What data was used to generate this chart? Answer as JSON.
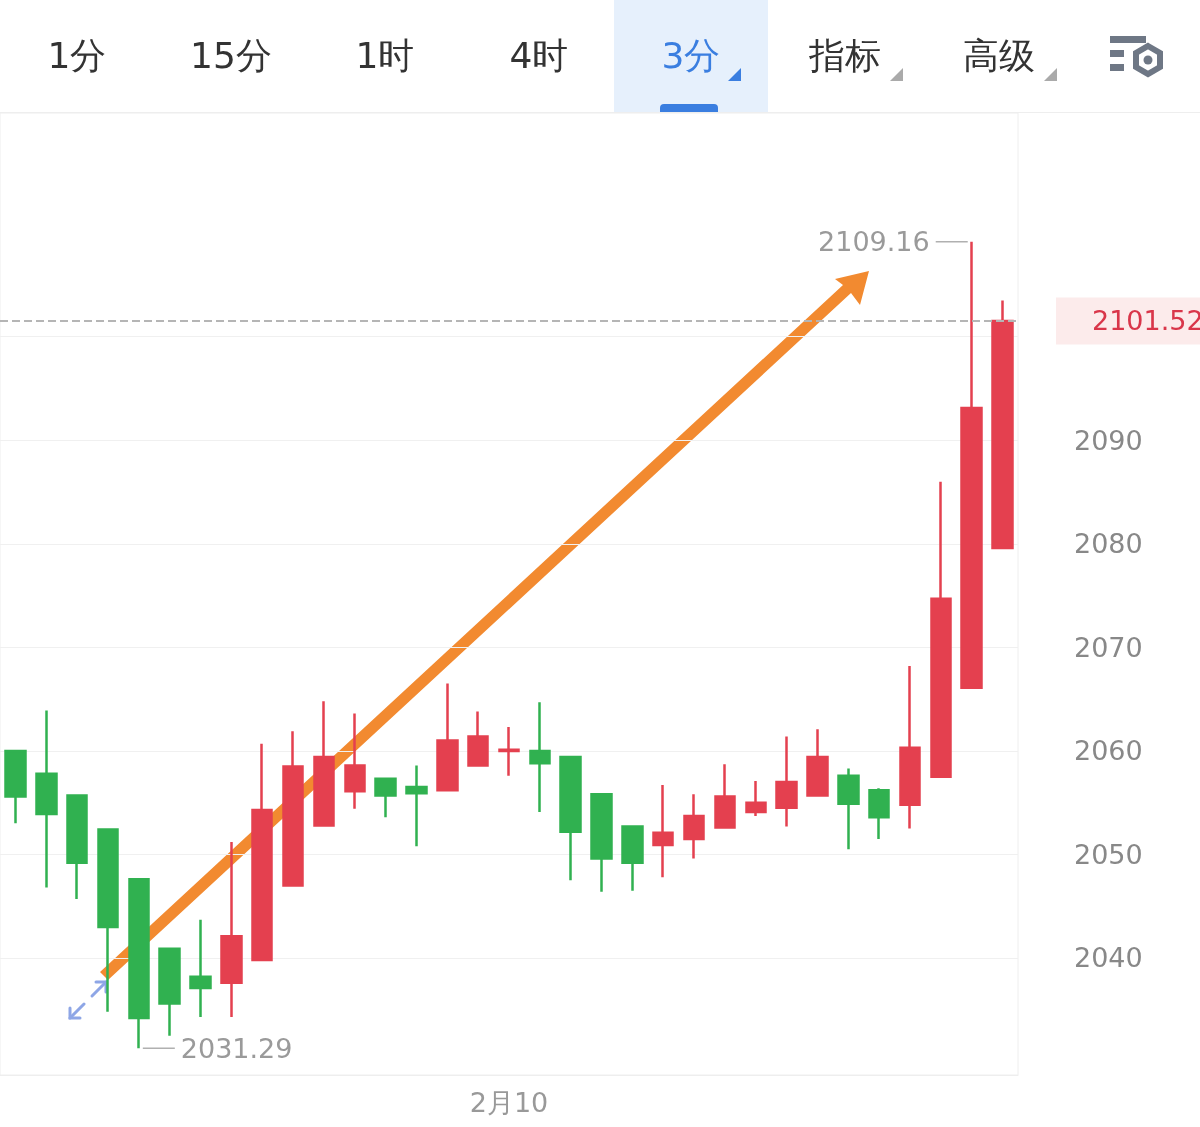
{
  "chart_data": {
    "type": "candlestick",
    "categories": [
      null,
      null,
      null,
      null,
      null,
      null,
      null,
      null,
      null,
      null,
      null,
      null,
      null,
      null,
      null,
      null,
      "2月10",
      null,
      null,
      null,
      null,
      null,
      null,
      null,
      null,
      null,
      null,
      null,
      null,
      null,
      null,
      null,
      null
    ],
    "ohlc": [
      [
        2060.0,
        2060.0,
        2053.0,
        2055.6
      ],
      [
        2057.8,
        2063.9,
        2046.8,
        2053.9
      ],
      [
        2055.7,
        2055.7,
        2045.7,
        2049.2
      ],
      [
        2052.4,
        2052.4,
        2034.8,
        2043.0
      ],
      [
        2047.6,
        2047.6,
        2031.29,
        2034.2
      ],
      [
        2040.9,
        2040.9,
        2032.5,
        2035.6
      ],
      [
        2038.2,
        2043.7,
        2034.3,
        2037.1
      ],
      [
        2037.6,
        2051.2,
        2034.3,
        2042.1
      ],
      [
        2039.8,
        2060.7,
        2039.8,
        2054.3
      ],
      [
        2047.0,
        2061.9,
        2047.0,
        2058.5
      ],
      [
        2052.8,
        2064.8,
        2052.8,
        2059.4
      ],
      [
        2056.1,
        2063.6,
        2054.4,
        2058.6
      ],
      [
        2057.3,
        2057.3,
        2053.6,
        2055.7
      ],
      [
        2056.5,
        2058.6,
        2050.8,
        2055.9
      ],
      [
        2056.2,
        2066.5,
        2056.2,
        2061.0
      ],
      [
        2058.6,
        2063.8,
        2058.6,
        2061.4
      ],
      [
        2060.0,
        2062.3,
        2057.6,
        2060.1
      ],
      [
        2060.0,
        2064.7,
        2054.1,
        2058.8
      ],
      [
        2059.4,
        2059.4,
        2047.5,
        2052.2
      ],
      [
        2055.8,
        2055.8,
        2046.4,
        2049.6
      ],
      [
        2052.7,
        2052.7,
        2046.5,
        2049.2
      ],
      [
        2050.9,
        2056.7,
        2047.8,
        2052.1
      ],
      [
        2051.5,
        2055.8,
        2049.6,
        2053.7
      ],
      [
        2052.6,
        2058.7,
        2052.6,
        2055.6
      ],
      [
        2054.1,
        2057.1,
        2053.7,
        2055.0
      ],
      [
        2054.5,
        2061.4,
        2052.7,
        2057.0
      ],
      [
        2055.7,
        2062.1,
        2055.7,
        2059.4
      ],
      [
        2057.6,
        2058.3,
        2050.5,
        2054.9
      ],
      [
        2056.2,
        2056.4,
        2051.5,
        2053.6
      ],
      [
        2054.8,
        2068.2,
        2052.5,
        2060.3
      ],
      [
        2057.5,
        2086.0,
        2057.5,
        2074.7
      ],
      [
        2066.1,
        2109.16,
        2066.1,
        2093.1
      ],
      [
        2079.6,
        2103.5,
        2079.6,
        2101.52
      ]
    ],
    "colors": [
      "#30b150",
      "#30b150",
      "#30b150",
      "#30b150",
      "#30b150",
      "#30b150",
      "#30b150",
      "#e4404f",
      "#e4404f",
      "#e4404f",
      "#e4404f",
      "#e4404f",
      "#30b150",
      "#30b150",
      "#e4404f",
      "#e4404f",
      "#e4404f",
      "#30b150",
      "#30b150",
      "#30b150",
      "#30b150",
      "#e4404f",
      "#e4404f",
      "#e4404f",
      "#e4404f",
      "#e4404f",
      "#e4404f",
      "#30b150",
      "#30b150",
      "#e4404f",
      "#e4404f",
      "#e4404f",
      "#e4404f"
    ],
    "ylim": [
      2028.7,
      2121.6
    ],
    "yticks": [
      2040,
      2050,
      2060,
      2070,
      2080,
      2090,
      {
        "value": 2100,
        "label": null
      }
    ],
    "grid": "y",
    "ref_lines": [
      {
        "axis": "y",
        "value": 2101.52,
        "label": "2101.52",
        "color": "#b5b5b5",
        "line_style": "dashed"
      }
    ],
    "annotations": [
      "1分",
      "15分",
      "1时",
      "4时",
      "3分",
      "指标",
      "高级",
      "2109.16",
      "2031.29"
    ]
  }
}
